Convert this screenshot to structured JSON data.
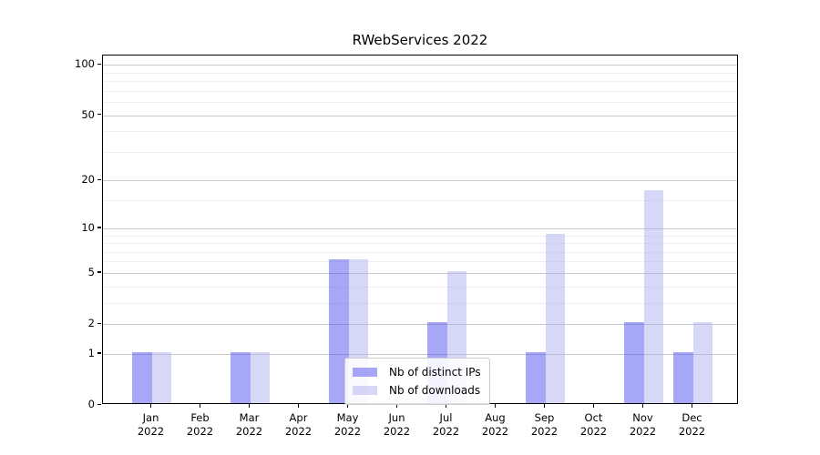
{
  "figure": {
    "background": "#ffffff",
    "text_color": "#000000",
    "spine_color": "#000000",
    "major_grid_color": "#c9c9c9",
    "minor_grid_color": "#efefef"
  },
  "legend": {
    "items": [
      {
        "label": "Nb of distinct IPs",
        "color": "rgba(80,80,240,0.5)"
      },
      {
        "label": "Nb of downloads",
        "color": "rgba(176,176,240,0.5)"
      }
    ],
    "border_color": "#cbcbcb",
    "background": "rgba(255,255,255,0.88)",
    "position": "lower center"
  },
  "chart_data": {
    "type": "bar",
    "title": "RWebServices 2022",
    "categories": [
      "Jan 2022",
      "Feb 2022",
      "Mar 2022",
      "Apr 2022",
      "May 2022",
      "Jun 2022",
      "Jul 2022",
      "Aug 2022",
      "Sep 2022",
      "Oct 2022",
      "Nov 2022",
      "Dec 2022"
    ],
    "series": [
      {
        "name": "Nb of distinct IPs",
        "color": "rgba(80,80,240,0.5)",
        "color_hex_on_white": "#a7a7f7",
        "values": [
          1,
          0,
          1,
          0,
          6,
          0,
          2,
          0,
          1,
          0,
          2,
          1
        ]
      },
      {
        "name": "Nb of downloads",
        "color": "rgba(176,176,240,0.5)",
        "color_hex_on_white": "#d7d7f7",
        "values": [
          1,
          0,
          1,
          0,
          6,
          0,
          5,
          0,
          9,
          0,
          17,
          2
        ]
      }
    ],
    "xlabel": "",
    "ylabel": "",
    "y_axis": {
      "scale": "log1p",
      "ticks": [
        0,
        1,
        2,
        5,
        10,
        20,
        50,
        100
      ],
      "minor_ticks": [
        3,
        4,
        6,
        7,
        8,
        9,
        15,
        30,
        40,
        60,
        70,
        80,
        90
      ],
      "range": [
        0,
        113
      ]
    },
    "grid": "horizontal",
    "legend_position": "lower center"
  }
}
